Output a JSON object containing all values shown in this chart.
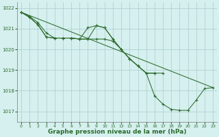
{
  "bg_color": "#d5f0ee",
  "grid_color": "#aacccc",
  "line_color": "#2d6a2d",
  "xlabel": "Graphe pression niveau de la mer (hPa)",
  "xlabel_fontsize": 6.5,
  "ylim": [
    1016.5,
    1022.3
  ],
  "xlim": [
    -0.5,
    23.5
  ],
  "yticks": [
    1017,
    1018,
    1019,
    1020,
    1021,
    1022
  ],
  "xticks": [
    0,
    1,
    2,
    3,
    4,
    5,
    6,
    7,
    8,
    9,
    10,
    11,
    12,
    13,
    14,
    15,
    16,
    17,
    18,
    19,
    20,
    21,
    22,
    23
  ],
  "line1_x": [
    0,
    1,
    2,
    3,
    4,
    5,
    6,
    7,
    8,
    9,
    10,
    11,
    12,
    13,
    14,
    15,
    16,
    17,
    18,
    19,
    20,
    21,
    22,
    23
  ],
  "line1_y": [
    1021.8,
    1021.6,
    1021.3,
    1020.8,
    1020.55,
    1020.55,
    1020.55,
    1020.5,
    1020.5,
    1021.15,
    1021.05,
    1020.5,
    1020.0,
    1019.55,
    1019.2,
    1018.85,
    1017.75,
    1017.35,
    1017.1,
    1017.05,
    1017.05,
    1017.55,
    1018.1,
    1018.15
  ],
  "line2_x": [
    0,
    1,
    2,
    3,
    4,
    5,
    6,
    7,
    8,
    9,
    10,
    11,
    12,
    13,
    14,
    15,
    16
  ],
  "line2_y": [
    1021.8,
    1021.55,
    1021.2,
    1020.6,
    1020.55,
    1020.55,
    1020.55,
    1020.5,
    1021.05,
    1021.15,
    1021.05,
    1020.5,
    1020.0,
    1019.55,
    1019.2,
    1018.85,
    1018.85
  ],
  "line3_x": [
    0,
    23
  ],
  "line3_y": [
    1021.8,
    1018.15
  ],
  "line4_x": [
    0,
    1,
    2,
    3,
    4,
    5,
    6,
    7,
    8,
    9,
    10,
    11,
    12,
    13,
    14,
    15,
    16,
    17
  ],
  "line4_y": [
    1021.8,
    1021.55,
    1021.2,
    1020.6,
    1020.55,
    1020.55,
    1020.55,
    1020.5,
    1020.5,
    1020.5,
    1020.5,
    1020.4,
    1020.0,
    1019.55,
    1019.2,
    1018.85,
    1018.85,
    1018.85
  ]
}
